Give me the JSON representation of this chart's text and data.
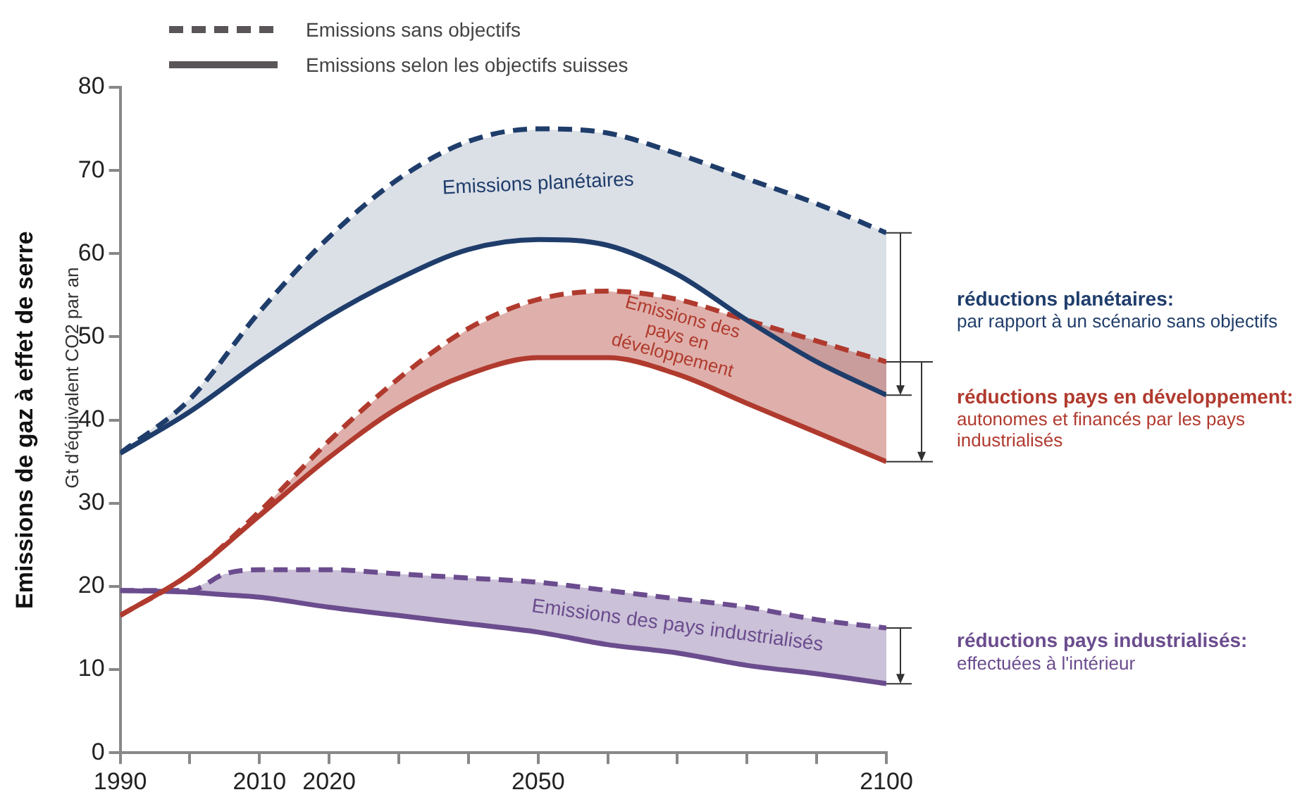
{
  "chart_data": {
    "type": "line",
    "ylabel": "Emissions de gaz à effet de serre",
    "subtitle": "Gt d'équivalent CO2 par an",
    "xlim": [
      1990,
      2100
    ],
    "ylim": [
      0,
      80
    ],
    "xticks": [
      1990,
      {
        "value": 2000,
        "label": null
      },
      2010,
      2020,
      {
        "value": 2030,
        "label": null
      },
      {
        "value": 2040,
        "label": null
      },
      2050,
      {
        "value": 2060,
        "label": null
      },
      {
        "value": 2070,
        "label": null
      },
      {
        "value": 2080,
        "label": null
      },
      {
        "value": 2090,
        "label": null
      },
      2100
    ],
    "yticks": [
      0,
      10,
      20,
      30,
      40,
      50,
      60,
      70,
      80
    ],
    "grid": false,
    "marker": "none",
    "series": [
      {
        "color": "#1f3d6b",
        "line_style": "dashed",
        "x": [
          1990,
          2000,
          2010,
          2020,
          2030,
          2040,
          2050,
          2060,
          2070,
          2080,
          2090,
          2100
        ],
        "values": [
          36,
          42.5,
          53,
          62,
          69,
          73.5,
          75,
          74.5,
          72,
          69,
          66,
          62.5
        ],
        "upper": [
          36,
          42.5,
          53,
          62,
          69,
          73.5,
          75,
          74.5,
          72,
          69,
          66,
          62.5
        ],
        "lower": [
          36,
          41,
          47,
          52.5,
          57,
          60.5,
          61.7,
          61,
          57.5,
          52,
          47,
          43
        ]
      },
      {
        "color": "#1f3d6b",
        "line_style": "solid",
        "x": [
          1990,
          2000,
          2010,
          2020,
          2030,
          2040,
          2050,
          2060,
          2070,
          2080,
          2090,
          2100
        ],
        "values": [
          36,
          41,
          47,
          52.5,
          57,
          60.5,
          61.7,
          61,
          57.5,
          52,
          47,
          43
        ]
      },
      {
        "color": "#b03a2e",
        "line_style": "dashed",
        "x": [
          1990,
          2000,
          2010,
          2020,
          2030,
          2040,
          2050,
          2060,
          2070,
          2080,
          2090,
          2100
        ],
        "values": [
          16.5,
          21.5,
          29,
          37.5,
          45,
          51,
          54.5,
          55.5,
          54.5,
          52,
          49.5,
          47
        ],
        "upper": [
          16.5,
          21.5,
          29,
          37.5,
          45,
          51,
          54.5,
          55.5,
          54.5,
          52,
          49.5,
          47
        ],
        "lower": [
          16.5,
          21.5,
          28.5,
          35.5,
          41.5,
          45.5,
          47.5,
          47.5,
          45.5,
          42,
          38.5,
          35
        ]
      },
      {
        "color": "#b03a2e",
        "line_style": "solid",
        "x": [
          1990,
          2000,
          2010,
          2020,
          2030,
          2040,
          2050,
          2060,
          2070,
          2080,
          2090,
          2100
        ],
        "values": [
          16.5,
          21.5,
          28.5,
          35.5,
          41.5,
          45.5,
          47.5,
          47.5,
          45.5,
          42,
          38.5,
          35
        ]
      },
      {
        "color": "#6b4c8e",
        "line_style": "dashed",
        "x": [
          1990,
          2000,
          2005,
          2010,
          2020,
          2030,
          2040,
          2050,
          2060,
          2070,
          2080,
          2090,
          2100
        ],
        "values": [
          19.5,
          19.5,
          21.5,
          22,
          22,
          21.5,
          21,
          20.5,
          19.5,
          18.5,
          17.5,
          16,
          15
        ],
        "upper": [
          19.5,
          19.5,
          21.5,
          22,
          22,
          21.5,
          21,
          20.5,
          19.5,
          18.5,
          17.5,
          16,
          15
        ],
        "lower": [
          19.5,
          19.3,
          19,
          18.7,
          17.5,
          16.5,
          15.5,
          14.5,
          13,
          12,
          10.5,
          9.5,
          8.3
        ]
      },
      {
        "color": "#6b4c8e",
        "line_style": "solid",
        "x": [
          1990,
          2000,
          2005,
          2010,
          2020,
          2030,
          2040,
          2050,
          2060,
          2070,
          2080,
          2090,
          2100
        ],
        "values": [
          19.5,
          19.3,
          19,
          18.7,
          17.5,
          16.5,
          15.5,
          14.5,
          13,
          12,
          10.5,
          9.5,
          8.3
        ]
      }
    ],
    "annotations": [
      "Emissions sans objectifs",
      "Emissions selon les objectifs suisses",
      "Emissions planétaires",
      "Emissions des pays en développement",
      "Emissions des pays industrialisés",
      "réductions planétaires:",
      "par rapport à un scénario sans objectifs",
      "réductions pays en développement:",
      "autonomes et financés par les pays industrialisés",
      "réductions pays industrialisés:",
      "effectuées à l'intérieur"
    ]
  }
}
